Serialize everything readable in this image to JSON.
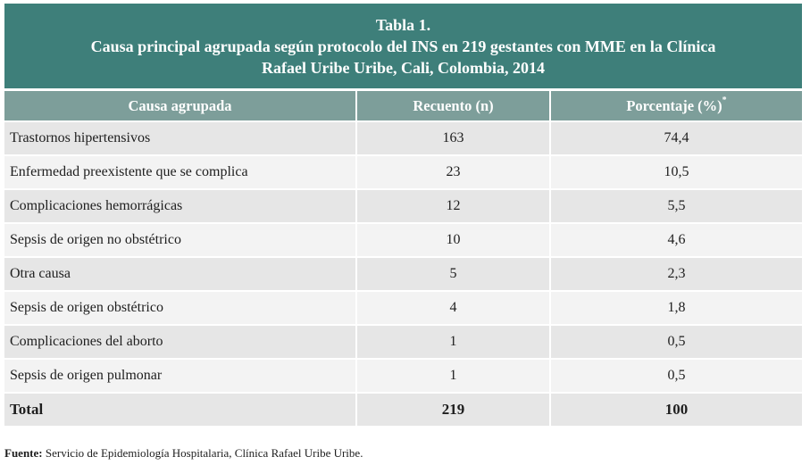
{
  "title": {
    "line1": "Tabla 1.",
    "line2": "Causa principal agrupada según protocolo del INS en 219 gestantes con MME en la Clínica",
    "line3": "Rafael Uribe Uribe, Cali, Colombia, 2014"
  },
  "table": {
    "headers": {
      "cause": "Causa agrupada",
      "count": "Recuento (n)",
      "percent": "Porcentaje (%)",
      "percent_mark": "*"
    },
    "rows": [
      {
        "cause": "Trastornos hipertensivos",
        "count": "163",
        "percent": "74,4"
      },
      {
        "cause": "Enfermedad preexistente que se complica",
        "count": "23",
        "percent": "10,5"
      },
      {
        "cause": "Complicaciones hemorrágicas",
        "count": "12",
        "percent": "5,5"
      },
      {
        "cause": "Sepsis de origen no obstétrico",
        "count": "10",
        "percent": "4,6"
      },
      {
        "cause": "Otra causa",
        "count": "5",
        "percent": "2,3"
      },
      {
        "cause": "Sepsis de origen obstétrico",
        "count": "4",
        "percent": "1,8"
      },
      {
        "cause": "Complicaciones del aborto",
        "count": "1",
        "percent": "0,5"
      },
      {
        "cause": "Sepsis de origen pulmonar",
        "count": "1",
        "percent": "0,5"
      }
    ],
    "total": {
      "cause": "Total",
      "count": "219",
      "percent": "100"
    }
  },
  "source": {
    "label": "Fuente:",
    "text": " Servicio de Epidemiología Hospitalaria, Clínica Rafael Uribe Uribe."
  },
  "colors": {
    "title_bg": "#3e7f7a",
    "header_bg": "#7d9e9a",
    "row_dark": "#e6e6e6",
    "row_light": "#f3f3f3"
  }
}
